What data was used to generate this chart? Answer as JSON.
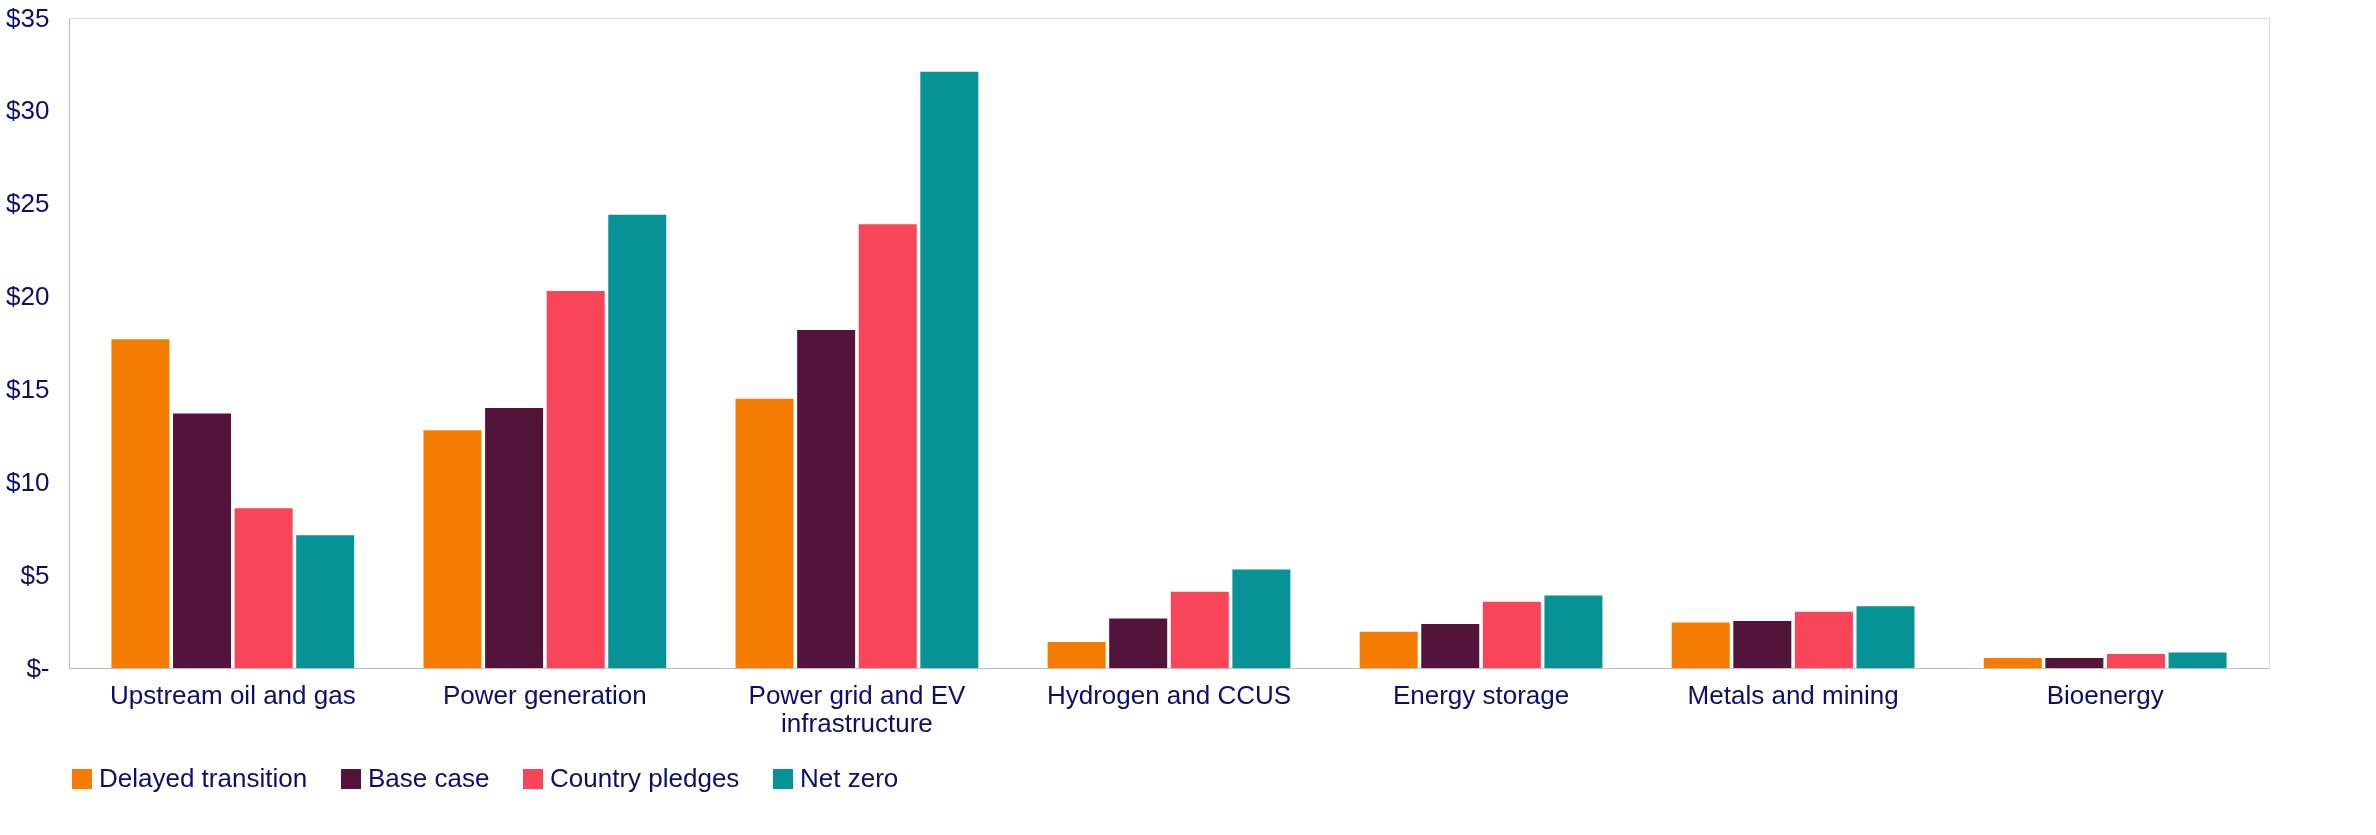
{
  "chart_data": {
    "type": "bar",
    "categories": [
      "Upstream oil and gas",
      "Power generation",
      "Power grid and EV infrastructure",
      "Hydrogen and CCUS",
      "Energy storage",
      "Metals and mining",
      "Bioenergy"
    ],
    "series": [
      {
        "name": "Delayed transition",
        "color": "#f47c00",
        "values": [
          17.7,
          12.8,
          14.5,
          1.4,
          1.95,
          2.45,
          0.54
        ]
      },
      {
        "name": "Base case",
        "color": "#53143c",
        "values": [
          13.7,
          14.0,
          18.2,
          2.66,
          2.37,
          2.53,
          0.54
        ]
      },
      {
        "name": "Country pledges",
        "color": "#f9455a",
        "values": [
          8.6,
          20.3,
          23.9,
          4.1,
          3.57,
          3.03,
          0.75
        ]
      },
      {
        "name": "Net zero",
        "color": "#079296",
        "values": [
          7.15,
          24.4,
          32.1,
          5.3,
          3.9,
          3.32,
          0.83
        ]
      }
    ],
    "ylim": [
      0,
      35
    ],
    "yticks": [
      {
        "value": 0,
        "label": "$-"
      },
      {
        "value": 5,
        "label": "$5"
      },
      {
        "value": 10,
        "label": "$10"
      },
      {
        "value": 15,
        "label": "$15"
      },
      {
        "value": 20,
        "label": "$20"
      },
      {
        "value": 25,
        "label": "$25"
      },
      {
        "value": 30,
        "label": "$30"
      },
      {
        "value": 35,
        "label": "$35"
      }
    ],
    "grid": false,
    "legend": "bottom"
  }
}
